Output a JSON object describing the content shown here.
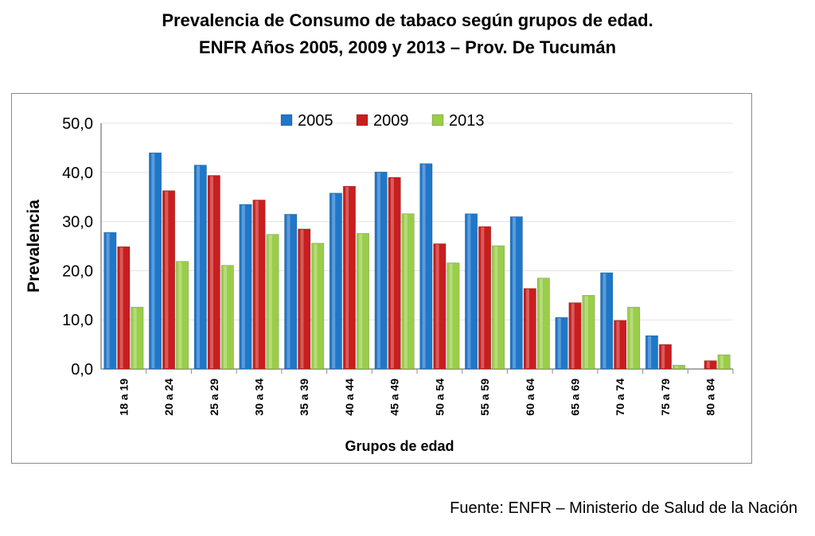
{
  "title_line1": "Prevalencia de Consumo de tabaco según grupos de edad.",
  "title_line2": "ENFR Años 2005, 2009 y 2013 – Prov. De Tucumán",
  "source": "Fuente: ENFR – Ministerio de Salud de la Nación",
  "chart_data": {
    "type": "bar",
    "title": "",
    "xlabel": "Grupos de edad",
    "ylabel": "Prevalencia",
    "ylim": [
      0,
      50
    ],
    "yticks": [
      "0,0",
      "10,0",
      "20,0",
      "30,0",
      "40,0",
      "50,0"
    ],
    "grid": true,
    "legend_position": "top-center",
    "categories": [
      "18 a 19",
      "20 a 24",
      "25 a 29",
      "30 a 34",
      "35 a 39",
      "40 a 44",
      "45 a 49",
      "50 a 54",
      "55 a 59",
      "60 a 64",
      "65 a 69",
      "70 a 74",
      "75 a 79",
      "80 a 84"
    ],
    "series": [
      {
        "name": "2005",
        "color": "#1f77c9",
        "values": [
          27.8,
          44.0,
          41.5,
          33.5,
          31.5,
          35.8,
          40.1,
          41.8,
          31.6,
          31.0,
          10.5,
          19.6,
          6.8,
          0.0
        ]
      },
      {
        "name": "2009",
        "color": "#c81e1e",
        "values": [
          24.9,
          36.3,
          39.4,
          34.4,
          28.5,
          37.2,
          39.0,
          25.5,
          29.0,
          16.4,
          13.5,
          9.9,
          5.0,
          1.7
        ]
      },
      {
        "name": "2013",
        "color": "#9acd4a",
        "values": [
          12.6,
          21.9,
          21.1,
          27.4,
          25.6,
          27.6,
          31.6,
          21.6,
          25.1,
          18.5,
          15.0,
          12.6,
          0.8,
          2.9
        ]
      }
    ]
  }
}
